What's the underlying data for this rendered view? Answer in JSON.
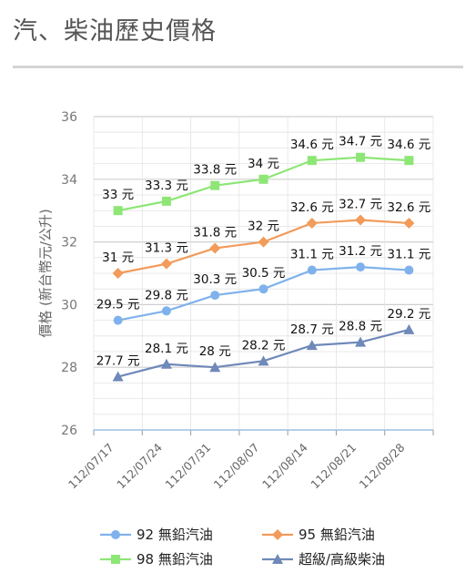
{
  "page": {
    "title": "汽、柴油歷史價格"
  },
  "colors": {
    "blue": "#7fb2ec",
    "orange": "#f29b5a",
    "green": "#8ee676",
    "navy": "#6f89b9",
    "grid": "#e3e3e3"
  },
  "chart_data": {
    "type": "line",
    "title": "",
    "xlabel": "",
    "ylabel": "價格 (新台幣元/公升)",
    "ylim": [
      26,
      36
    ],
    "yticks": [
      "26",
      "28",
      "30",
      "32",
      "34",
      "36"
    ],
    "categories": [
      "112/07/17",
      "112/07/24",
      "112/07/31",
      "112/08/07",
      "112/08/14",
      "112/08/21",
      "112/08/28"
    ],
    "legend_position": "bottom",
    "series": [
      {
        "name": "92 無鉛汽油",
        "marker": "circle",
        "color": "#7fb2ec",
        "values": [
          29.5,
          29.8,
          30.3,
          30.5,
          31.1,
          31.2,
          31.1
        ],
        "labels": [
          "29.5 元",
          "29.8 元",
          "30.3 元",
          "30.5 元",
          "31.1 元",
          "31.2 元",
          "31.1 元"
        ]
      },
      {
        "name": "95 無鉛汽油",
        "marker": "diamond",
        "color": "#f29b5a",
        "values": [
          31,
          31.3,
          31.8,
          32,
          32.6,
          32.7,
          32.6
        ],
        "labels": [
          "31 元",
          "31.3 元",
          "31.8 元",
          "32 元",
          "32.6 元",
          "32.7 元",
          "32.6 元"
        ]
      },
      {
        "name": "98 無鉛汽油",
        "marker": "square",
        "color": "#8ee676",
        "values": [
          33,
          33.3,
          33.8,
          34,
          34.6,
          34.7,
          34.6
        ],
        "labels": [
          "33 元",
          "33.3 元",
          "33.8 元",
          "34 元",
          "34.6 元",
          "34.7 元",
          "34.6 元"
        ]
      },
      {
        "name": "超級/高級柴油",
        "marker": "triangle",
        "color": "#6f89b9",
        "values": [
          27.7,
          28.1,
          28,
          28.2,
          28.7,
          28.8,
          29.2
        ],
        "labels": [
          "27.7 元",
          "28.1 元",
          "28 元",
          "28.2 元",
          "28.7 元",
          "28.8 元",
          "29.2 元"
        ]
      }
    ]
  }
}
